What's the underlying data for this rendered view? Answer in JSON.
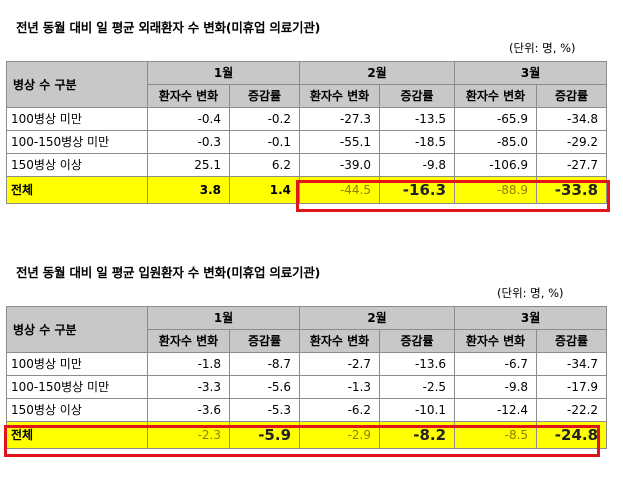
{
  "table1": {
    "title": "전년 동월 대비 일 평균 외래환자 수 변화(미휴업 의료기관)",
    "unit": "(단위: 명, %)",
    "header": {
      "row_label": "병상 수 구분",
      "months": [
        "1월",
        "2월",
        "3월"
      ],
      "sub": [
        "환자수 변화",
        "증감률",
        "환자수 변화",
        "증감률",
        "환자수 변화",
        "증감률"
      ]
    },
    "rows": [
      {
        "label": "100병상 미만",
        "values": [
          "-0.4",
          "-0.2",
          "-27.3",
          "-13.5",
          "-65.9",
          "-34.8"
        ]
      },
      {
        "label": "100-150병상 미만",
        "values": [
          "-0.3",
          "-0.1",
          "-55.1",
          "-18.5",
          "-85.0",
          "-29.2"
        ]
      },
      {
        "label": "150병상 이상",
        "values": [
          "25.1",
          "6.2",
          "-39.0",
          "-9.8",
          "-106.9",
          "-27.7"
        ]
      }
    ],
    "total": {
      "label": "전체",
      "values": [
        "3.8",
        "1.4",
        "-44.5",
        "-16.3",
        "-88.9",
        "-33.8"
      ]
    }
  },
  "table2": {
    "title": "전년 동월 대비 일 평균 입원환자 수 변화(미휴업 의료기관)",
    "unit": "(단위: 명, %)",
    "header": {
      "row_label": "병상 수 구분",
      "months": [
        "1월",
        "2월",
        "3월"
      ],
      "sub": [
        "환자수 변화",
        "증감률",
        "환자수 변화",
        "증감률",
        "환자수 변화",
        "증감률"
      ]
    },
    "rows": [
      {
        "label": "100병상 미만",
        "values": [
          "-1.8",
          "-8.7",
          "-2.7",
          "-13.6",
          "-6.7",
          "-34.7"
        ]
      },
      {
        "label": "100-150병상 미만",
        "values": [
          "-3.3",
          "-5.6",
          "-1.3",
          "-2.5",
          "-9.8",
          "-17.9"
        ]
      },
      {
        "label": "150병상 이상",
        "values": [
          "-3.6",
          "-5.3",
          "-6.2",
          "-10.1",
          "-12.4",
          "-22.2"
        ]
      }
    ],
    "total": {
      "label": "전체",
      "values": [
        "-2.3",
        "-5.9",
        "-2.9",
        "-8.2",
        "-8.5",
        "-24.8"
      ]
    }
  },
  "colors": {
    "header_bg": "#c8c8c8",
    "total_bg": "#ffff00",
    "highlight_border": "#e0141b"
  }
}
